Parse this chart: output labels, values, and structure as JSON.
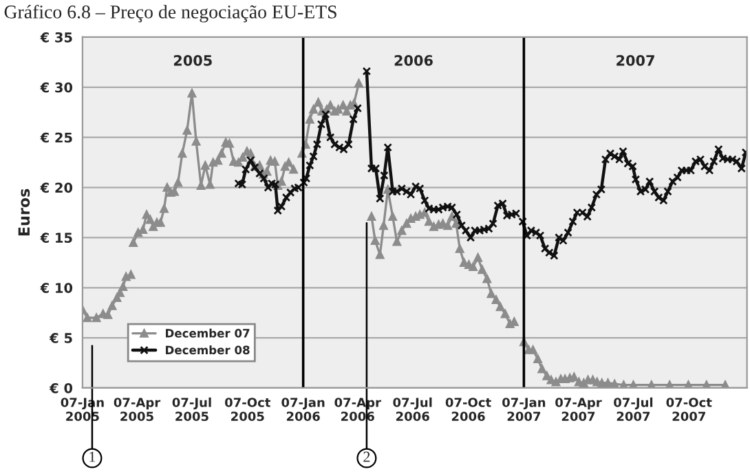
{
  "chart_data": {
    "type": "line",
    "title": "Gráfico 6.8 – Preço de negociação EU-ETS",
    "ylabel": "Euros",
    "xlim": [
      "2005-01-07",
      "2008-01-11"
    ],
    "ylim": [
      0,
      35
    ],
    "xticks": [
      {
        "value": "2005-01-07",
        "label": "07-Jan\n2005"
      },
      {
        "value": "2005-04-07",
        "label": "07-Apr\n2005"
      },
      {
        "value": "2005-07-07",
        "label": "07-Jul\n2005"
      },
      {
        "value": "2005-10-07",
        "label": "07-Oct\n2005"
      },
      {
        "value": "2006-01-07",
        "label": "07-Jan\n2006"
      },
      {
        "value": "2006-04-07",
        "label": "07-Apr\n2006"
      },
      {
        "value": "2006-07-07",
        "label": "07-Jul\n2006"
      },
      {
        "value": "2006-10-07",
        "label": "07-Oct\n2006"
      },
      {
        "value": "2007-01-07",
        "label": "07-Jan\n2007"
      },
      {
        "value": "2007-04-07",
        "label": "07-Apr\n2007"
      },
      {
        "value": "2007-07-07",
        "label": "07-Jul\n2007"
      },
      {
        "value": "2007-10-07",
        "label": "07-Oct\n2007"
      }
    ],
    "yticks": [
      {
        "value": 0,
        "label": "€ 0"
      },
      {
        "value": 5,
        "label": "€ 5"
      },
      {
        "value": 10,
        "label": "€ 10"
      },
      {
        "value": 15,
        "label": "€ 15"
      },
      {
        "value": 20,
        "label": "€ 20"
      },
      {
        "value": 25,
        "label": "€ 25"
      },
      {
        "value": 30,
        "label": "€ 30"
      },
      {
        "value": 35,
        "label": "€ 35"
      }
    ],
    "grid": "y",
    "legend": "bottom left",
    "series": [
      {
        "name": "December 07",
        "color": "#8c8c8c",
        "marker": "triangle",
        "x": [
          "2005-01-07",
          "2005-01-15",
          "2005-01-30",
          "2005-02-10",
          "2005-02-18",
          "2005-02-25",
          "2005-03-05",
          "2005-03-10",
          "2005-03-15",
          "2005-03-20",
          "2005-03-28",
          "2005-03-30",
          "2005-04-01",
          "2005-04-09",
          "2005-04-17",
          "2005-04-23",
          "2005-04-29",
          "2005-05-04",
          "2005-05-10",
          "2005-05-16",
          "2005-05-22",
          "2005-05-27",
          "2005-06-02",
          "2005-06-08",
          "2005-06-14",
          "2005-06-21",
          "2005-06-29",
          "2005-07-07",
          "2005-07-14",
          "2005-07-22",
          "2005-07-29",
          "2005-08-06",
          "2005-08-11",
          "2005-08-19",
          "2005-08-25",
          "2005-09-01",
          "2005-09-07",
          "2005-09-14",
          "2005-09-22",
          "2005-09-29",
          "2005-10-06",
          "2005-10-12",
          "2005-10-19",
          "2005-10-27",
          "2005-11-02",
          "2005-11-08",
          "2005-11-14",
          "2005-11-21",
          "2005-11-26",
          "2005-12-02",
          "2005-12-08",
          "2005-12-14",
          "2005-12-22",
          "2005-12-29",
          "2006-01-05",
          "2006-01-11",
          "2006-01-18",
          "2006-01-24",
          "2006-02-01",
          "2006-02-07",
          "2006-02-15",
          "2006-02-21",
          "2006-02-28",
          "2006-03-06",
          "2006-03-14",
          "2006-03-20",
          "2006-03-26",
          "2006-04-01",
          "2006-04-09",
          "2006-04-15",
          "2006-04-30",
          "2006-05-06",
          "2006-05-14",
          "2006-05-20",
          "2006-05-27",
          "2006-06-04",
          "2006-06-11",
          "2006-06-19",
          "2006-06-27",
          "2006-07-04",
          "2006-07-12",
          "2006-07-19",
          "2006-07-27",
          "2006-08-03",
          "2006-08-11",
          "2006-08-19",
          "2006-08-26",
          "2006-09-03",
          "2006-09-10",
          "2006-09-17",
          "2006-09-23",
          "2006-09-30",
          "2006-10-08",
          "2006-10-15",
          "2006-10-23",
          "2006-10-30",
          "2006-11-07",
          "2006-11-14",
          "2006-11-22",
          "2006-11-29",
          "2006-12-07",
          "2006-12-15",
          "2006-12-22",
          "2006-12-30",
          "2007-01-07",
          "2007-01-15",
          "2007-01-22",
          "2007-01-30",
          "2007-02-06",
          "2007-02-14",
          "2007-02-21",
          "2007-03-01",
          "2007-03-09",
          "2007-03-16",
          "2007-03-24",
          "2007-03-31",
          "2007-04-04",
          "2007-04-08",
          "2007-04-16",
          "2007-04-23",
          "2007-05-01",
          "2007-05-08",
          "2007-05-16",
          "2007-05-26",
          "2007-06-06",
          "2007-06-21",
          "2007-07-07",
          "2007-08-06",
          "2007-09-05",
          "2007-10-06",
          "2007-11-05",
          "2007-12-06"
        ],
        "values": [
          7.8,
          7.0,
          7.0,
          7.4,
          7.3,
          8.2,
          9.0,
          9.5,
          10.1,
          11.1,
          11.3,
          null,
          14.5,
          15.5,
          15.8,
          17.3,
          16.8,
          16.1,
          16.5,
          16.5,
          17.9,
          20.0,
          19.5,
          19.6,
          20.5,
          23.4,
          25.7,
          29.4,
          24.6,
          20.2,
          22.2,
          20.3,
          22.5,
          22.7,
          23.4,
          24.5,
          24.4,
          22.6,
          22.5,
          23.0,
          23.6,
          23.4,
          22.1,
          22.2,
          21.3,
          21.6,
          22.7,
          22.6,
          20.2,
          20.6,
          22.1,
          22.5,
          21.8,
          null,
          23.4,
          24.3,
          26.8,
          27.8,
          28.5,
          27.6,
          27.8,
          28.2,
          27.6,
          27.8,
          28.2,
          27.6,
          28.2,
          28.4,
          30.4,
          null,
          17.1,
          14.7,
          13.3,
          16.2,
          19.8,
          17.1,
          14.6,
          15.7,
          16.4,
          16.9,
          17.1,
          17.3,
          17.5,
          16.6,
          16.1,
          16.3,
          16.4,
          16.2,
          17.1,
          16.4,
          13.9,
          12.5,
          12.3,
          12.1,
          13.0,
          11.8,
          10.9,
          9.4,
          8.8,
          8.1,
          7.4,
          6.4,
          6.6,
          null,
          4.6,
          3.8,
          3.8,
          2.9,
          1.9,
          1.2,
          0.8,
          0.6,
          0.9,
          0.9,
          1.0,
          1.1,
          null,
          0.6,
          0.5,
          0.8,
          0.8,
          0.6,
          0.5,
          0.5,
          0.4,
          0.3,
          0.3,
          0.3,
          0.3,
          0.3,
          0.3,
          0.3
        ]
      },
      {
        "name": "December 08",
        "color": "#111111",
        "marker": "cross",
        "x": [
          "2005-09-22",
          "2005-09-28",
          "2005-10-04",
          "2005-10-12",
          "2005-10-19",
          "2005-10-27",
          "2005-11-03",
          "2005-11-10",
          "2005-11-16",
          "2005-11-22",
          "2005-11-26",
          "2005-12-02",
          "2005-12-10",
          "2005-12-17",
          "2005-12-24",
          "2005-12-30",
          "2006-01-03",
          "2006-01-08",
          "2006-01-12",
          "2006-01-18",
          "2006-01-24",
          "2006-01-30",
          "2006-02-06",
          "2006-02-13",
          "2006-02-21",
          "2006-02-28",
          "2006-03-08",
          "2006-03-15",
          "2006-03-23",
          "2006-03-31",
          "2006-04-07",
          "2006-04-15",
          "2006-04-22",
          "2006-04-30",
          "2006-05-07",
          "2006-05-14",
          "2006-05-21",
          "2006-05-27",
          "2006-06-04",
          "2006-06-11",
          "2006-06-19",
          "2006-06-27",
          "2006-07-04",
          "2006-07-12",
          "2006-07-19",
          "2006-07-27",
          "2006-08-03",
          "2006-08-11",
          "2006-08-19",
          "2006-08-26",
          "2006-09-03",
          "2006-09-10",
          "2006-09-18",
          "2006-09-26",
          "2006-10-03",
          "2006-10-11",
          "2006-10-18",
          "2006-10-26",
          "2006-11-02",
          "2006-11-10",
          "2006-11-17",
          "2006-11-25",
          "2006-12-03",
          "2006-12-10",
          "2006-12-18",
          "2006-12-25",
          "2006-12-30",
          "2007-01-05",
          "2007-01-12",
          "2007-01-19",
          "2007-01-27",
          "2007-02-03",
          "2007-02-11",
          "2007-02-18",
          "2007-02-26",
          "2007-03-06",
          "2007-03-13",
          "2007-03-21",
          "2007-03-29",
          "2007-04-05",
          "2007-04-09",
          "2007-04-14",
          "2007-04-22",
          "2007-04-29",
          "2007-05-07",
          "2007-05-15",
          "2007-05-22",
          "2007-05-30",
          "2007-06-06",
          "2007-06-14",
          "2007-06-20",
          "2007-06-28",
          "2007-07-06",
          "2007-07-11",
          "2007-07-19",
          "2007-07-27",
          "2007-08-03",
          "2007-08-11",
          "2007-08-18",
          "2007-08-26",
          "2007-09-02",
          "2007-09-10",
          "2007-09-18",
          "2007-09-25",
          "2007-10-03",
          "2007-10-10",
          "2007-10-18",
          "2007-10-26",
          "2007-11-02",
          "2007-11-10",
          "2007-11-17",
          "2007-11-25",
          "2007-12-02",
          "2007-12-10",
          "2007-12-18",
          "2007-12-25",
          "2008-01-02",
          "2008-01-09"
        ],
        "values": [
          20.4,
          20.3,
          21.8,
          22.7,
          22.0,
          21.4,
          20.9,
          20.0,
          20.4,
          20.3,
          17.7,
          18.1,
          19.0,
          19.5,
          19.9,
          20.0,
          null,
          20.5,
          20.9,
          22.2,
          23.1,
          24.3,
          26.3,
          27.3,
          25.0,
          24.3,
          24.0,
          23.8,
          24.3,
          26.8,
          27.9,
          null,
          31.6,
          21.9,
          21.9,
          18.9,
          21.2,
          24.0,
          19.6,
          19.6,
          19.9,
          19.6,
          19.3,
          20.1,
          19.9,
          18.7,
          17.9,
          17.8,
          17.8,
          18.0,
          18.1,
          18.0,
          17.3,
          16.2,
          15.7,
          15.0,
          15.7,
          15.7,
          15.8,
          15.9,
          16.4,
          18.2,
          18.4,
          17.2,
          17.3,
          17.4,
          null,
          16.6,
          15.2,
          15.7,
          15.5,
          15.2,
          13.9,
          13.5,
          13.2,
          15.0,
          14.7,
          15.5,
          16.6,
          17.5,
          null,
          17.5,
          17.1,
          18.0,
          19.3,
          19.8,
          22.8,
          23.4,
          23.1,
          22.8,
          23.6,
          22.4,
          22.1,
          20.8,
          19.6,
          19.8,
          20.6,
          19.6,
          19.0,
          18.7,
          19.6,
          20.6,
          21.0,
          21.7,
          21.7,
          21.7,
          22.6,
          22.8,
          22.1,
          21.7,
          22.6,
          23.8,
          22.9,
          22.8,
          22.8,
          22.6,
          21.9,
          23.5
        ]
      }
    ],
    "ref_lines": [
      {
        "axis": "x",
        "value": "2006-01-07",
        "color": "#000000"
      },
      {
        "axis": "x",
        "value": "2007-01-07",
        "color": "#000000"
      },
      {
        "axis": "x",
        "value": "2005-01-23",
        "label": "1",
        "color": "#000000"
      },
      {
        "axis": "x",
        "value": "2006-04-22",
        "label": "2",
        "color": "#000000"
      }
    ],
    "annotations": [
      "2005",
      "2006",
      "2007"
    ]
  }
}
